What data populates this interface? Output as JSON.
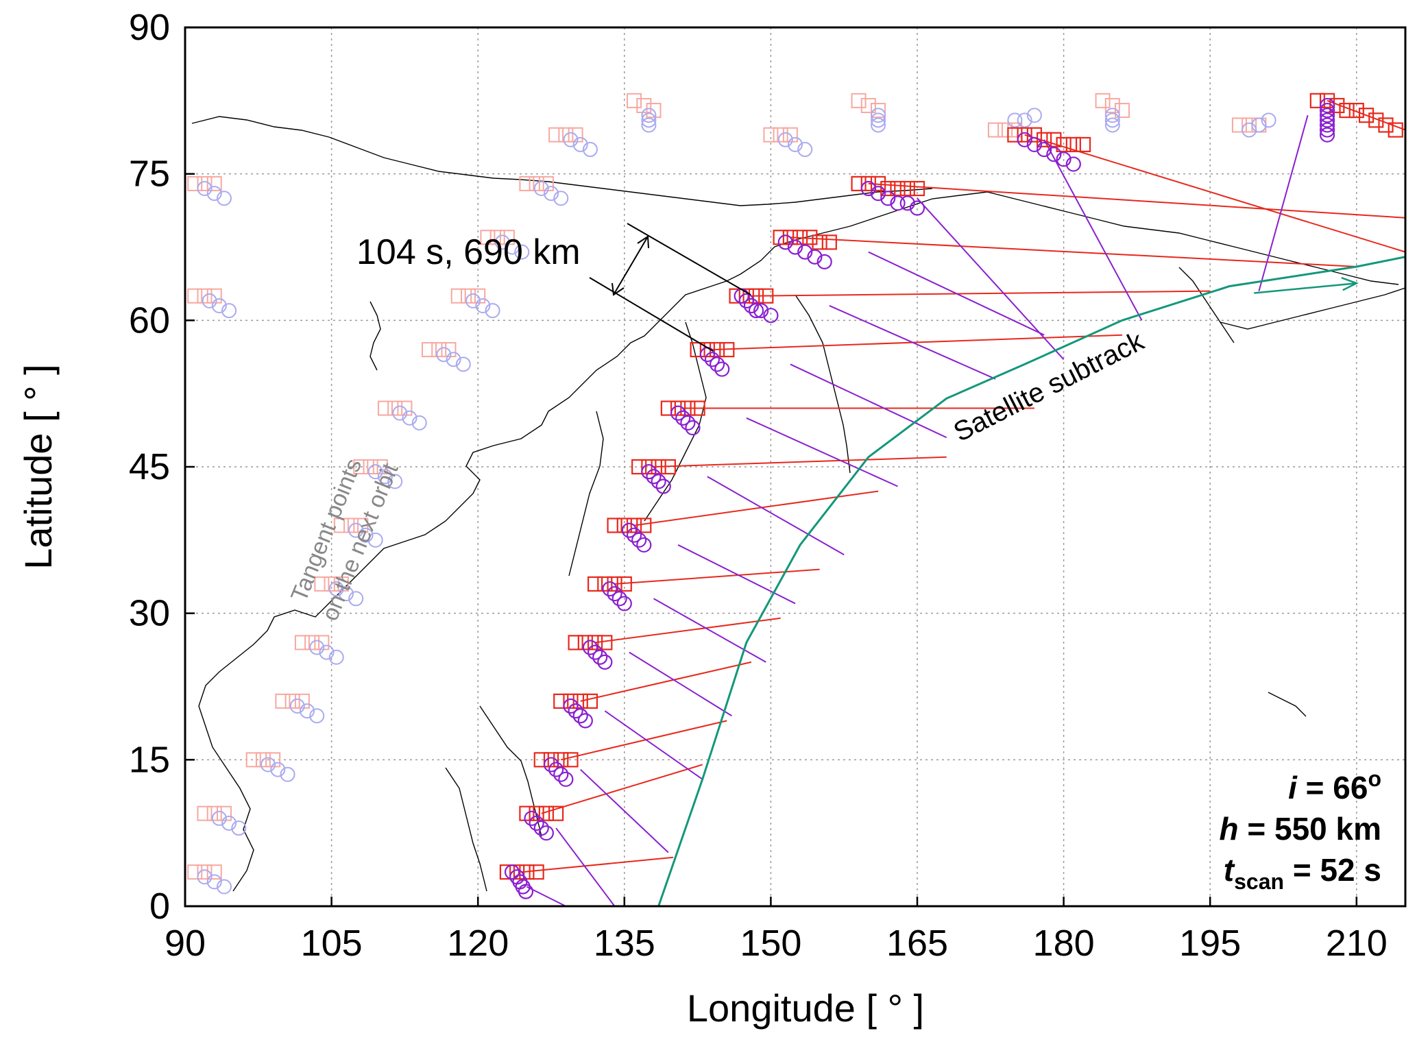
{
  "chart_data": {
    "type": "scatter",
    "title": "",
    "xlabel": "Longitude [ ° ]",
    "ylabel": "Latitude [ ° ]",
    "xlim": [
      90,
      215
    ],
    "ylim": [
      0,
      90
    ],
    "xticks": [
      "90",
      "105",
      "120",
      "135",
      "150",
      "165",
      "180",
      "195",
      "210"
    ],
    "yticks": [
      "0",
      "15",
      "30",
      "45",
      "60",
      "75",
      "90"
    ],
    "grid": true,
    "colors": {
      "red_squares": "#e8281c",
      "purple_circles": "#8a1fd0",
      "next_orbit_red": "#f7a8a0",
      "next_orbit_blue": "#a9aaf0",
      "subtrack": "#13977a",
      "coast": "#000000"
    },
    "subtrack": {
      "label": "Satellite subtrack",
      "points": [
        [
          138.5,
          0
        ],
        [
          143,
          13
        ],
        [
          147.5,
          27
        ],
        [
          153,
          37
        ],
        [
          160,
          46
        ],
        [
          168,
          52
        ],
        [
          176,
          55.5
        ],
        [
          186,
          60
        ],
        [
          197,
          63.5
        ],
        [
          210,
          65.5
        ],
        [
          215,
          66.5
        ]
      ]
    },
    "red_lines": [
      [
        [
          124.5,
          3.5
        ],
        [
          140,
          5
        ]
      ],
      [
        [
          126.5,
          9.5
        ],
        [
          143,
          14.5
        ]
      ],
      [
        [
          128.5,
          15
        ],
        [
          145.5,
          19
        ]
      ],
      [
        [
          130.5,
          21
        ],
        [
          148,
          25
        ]
      ],
      [
        [
          132,
          27
        ],
        [
          151,
          29.5
        ]
      ],
      [
        [
          134,
          33
        ],
        [
          155,
          34.5
        ]
      ],
      [
        [
          136,
          39
        ],
        [
          161,
          42.5
        ]
      ],
      [
        [
          138,
          45
        ],
        [
          168,
          46
        ]
      ],
      [
        [
          141,
          51
        ],
        [
          177,
          51
        ]
      ],
      [
        [
          144,
          57
        ],
        [
          186,
          58.5
        ]
      ],
      [
        [
          148,
          62.5
        ],
        [
          195,
          63
        ]
      ],
      [
        [
          152,
          68.5
        ],
        [
          210,
          65.5
        ]
      ],
      [
        [
          160,
          74
        ],
        [
          215,
          70.5
        ]
      ],
      [
        [
          176,
          79
        ],
        [
          215,
          67
        ]
      ],
      [
        [
          207,
          82.5
        ],
        [
          215,
          79.5
        ]
      ]
    ],
    "purple_lines": [
      [
        [
          125,
          2
        ],
        [
          129,
          0
        ]
      ],
      [
        [
          128,
          8
        ],
        [
          134,
          0
        ]
      ],
      [
        [
          130.5,
          14
        ],
        [
          139.5,
          5.5
        ]
      ],
      [
        [
          133,
          20
        ],
        [
          143,
          13
        ]
      ],
      [
        [
          135.5,
          26
        ],
        [
          146,
          19.5
        ]
      ],
      [
        [
          138,
          31.5
        ],
        [
          149.5,
          25
        ]
      ],
      [
        [
          140.5,
          37
        ],
        [
          152.5,
          31
        ]
      ],
      [
        [
          143.5,
          44
        ],
        [
          157.5,
          36
        ]
      ],
      [
        [
          147.5,
          50
        ],
        [
          163,
          43
        ]
      ],
      [
        [
          152,
          55.5
        ],
        [
          168,
          48
        ]
      ],
      [
        [
          156,
          61.5
        ],
        [
          173,
          54
        ]
      ],
      [
        [
          160,
          67
        ],
        [
          178,
          58.5
        ]
      ],
      [
        [
          165,
          72.5
        ],
        [
          180,
          56
        ]
      ],
      [
        [
          178,
          78.5
        ],
        [
          188,
          60
        ]
      ],
      [
        [
          205,
          81
        ],
        [
          200,
          63
        ]
      ]
    ],
    "red_squares": [
      [
        123,
        3.5
      ],
      [
        124,
        3.5
      ],
      [
        125,
        3.5
      ],
      [
        126,
        3.5
      ],
      [
        125,
        9.5
      ],
      [
        126,
        9.5
      ],
      [
        127,
        9.5
      ],
      [
        128,
        9.5
      ],
      [
        126.5,
        15
      ],
      [
        127.5,
        15
      ],
      [
        128.5,
        15
      ],
      [
        129.5,
        15
      ],
      [
        128.5,
        21
      ],
      [
        129.5,
        21
      ],
      [
        130.5,
        21
      ],
      [
        131.5,
        21
      ],
      [
        130,
        27
      ],
      [
        131,
        27
      ],
      [
        132,
        27
      ],
      [
        133,
        27
      ],
      [
        132,
        33
      ],
      [
        133,
        33
      ],
      [
        134,
        33
      ],
      [
        135,
        33
      ],
      [
        134,
        39
      ],
      [
        135,
        39
      ],
      [
        136,
        39
      ],
      [
        137,
        39
      ],
      [
        136.5,
        45
      ],
      [
        137.5,
        45
      ],
      [
        138.5,
        45
      ],
      [
        139.5,
        45
      ],
      [
        139.5,
        51
      ],
      [
        140.5,
        51
      ],
      [
        141.5,
        51
      ],
      [
        142.5,
        51
      ],
      [
        142.5,
        57
      ],
      [
        143.5,
        57
      ],
      [
        144.5,
        57
      ],
      [
        145.5,
        57
      ],
      [
        146.5,
        62.5
      ],
      [
        147.5,
        62.5
      ],
      [
        148.5,
        62.5
      ],
      [
        149.5,
        62.5
      ],
      [
        151,
        68.5
      ],
      [
        152,
        68.5
      ],
      [
        153,
        68.5
      ],
      [
        154,
        68.5
      ],
      [
        155,
        68
      ],
      [
        156,
        68
      ],
      [
        159,
        74
      ],
      [
        160,
        74
      ],
      [
        161,
        74
      ],
      [
        162,
        73.5
      ],
      [
        163,
        73.5
      ],
      [
        164,
        73.5
      ],
      [
        165,
        73.5
      ],
      [
        175,
        79
      ],
      [
        176,
        79
      ],
      [
        177,
        79
      ],
      [
        178,
        78.5
      ],
      [
        179,
        78.5
      ],
      [
        180,
        78
      ],
      [
        181,
        78
      ],
      [
        182,
        78
      ],
      [
        206,
        82.5
      ],
      [
        207,
        82.5
      ],
      [
        208,
        82
      ],
      [
        209,
        81.5
      ],
      [
        210,
        81.5
      ],
      [
        211,
        81
      ],
      [
        212,
        80.5
      ],
      [
        213,
        80
      ],
      [
        214,
        79.5
      ]
    ],
    "purple_circles": [
      [
        123.5,
        3.5
      ],
      [
        124,
        3
      ],
      [
        124.3,
        2.5
      ],
      [
        124.6,
        2
      ],
      [
        124.9,
        1.5
      ],
      [
        125.5,
        9
      ],
      [
        126,
        8.5
      ],
      [
        126.5,
        8
      ],
      [
        127,
        7.5
      ],
      [
        127.5,
        14.5
      ],
      [
        128,
        14
      ],
      [
        128.5,
        13.5
      ],
      [
        129,
        13
      ],
      [
        129.5,
        20.5
      ],
      [
        130,
        20
      ],
      [
        130.5,
        19.5
      ],
      [
        131,
        19
      ],
      [
        131.5,
        26.5
      ],
      [
        132,
        26
      ],
      [
        132.5,
        25.5
      ],
      [
        133,
        25
      ],
      [
        133.5,
        32.5
      ],
      [
        134,
        32
      ],
      [
        134.5,
        31.5
      ],
      [
        135,
        31
      ],
      [
        135.5,
        38.5
      ],
      [
        136,
        38
      ],
      [
        136.5,
        37.5
      ],
      [
        137,
        37
      ],
      [
        137.5,
        44.5
      ],
      [
        138,
        44
      ],
      [
        138.5,
        43.5
      ],
      [
        139,
        43
      ],
      [
        140.5,
        50.5
      ],
      [
        141,
        50
      ],
      [
        141.5,
        49.5
      ],
      [
        142,
        49
      ],
      [
        143.5,
        56.5
      ],
      [
        144,
        56
      ],
      [
        144.5,
        55.5
      ],
      [
        145,
        55
      ],
      [
        147,
        62.5
      ],
      [
        147.5,
        62
      ],
      [
        148,
        61.5
      ],
      [
        148.5,
        61
      ],
      [
        149,
        61
      ],
      [
        150,
        60.5
      ],
      [
        151.5,
        68
      ],
      [
        152.5,
        67.5
      ],
      [
        153.5,
        67
      ],
      [
        154.5,
        66.5
      ],
      [
        155.5,
        66
      ],
      [
        160,
        73.5
      ],
      [
        161,
        73
      ],
      [
        162,
        72.5
      ],
      [
        163,
        72
      ],
      [
        164,
        72
      ],
      [
        165,
        71.5
      ],
      [
        176,
        78.5
      ],
      [
        177,
        78
      ],
      [
        178,
        77.5
      ],
      [
        179,
        77
      ],
      [
        180,
        76.5
      ],
      [
        181,
        76
      ],
      [
        207,
        82
      ],
      [
        207,
        81.5
      ],
      [
        207,
        81
      ],
      [
        207,
        80.5
      ],
      [
        207,
        80
      ],
      [
        207,
        79.5
      ],
      [
        207,
        79
      ]
    ],
    "next_orbit_red": [
      [
        91,
        3.5
      ],
      [
        92,
        3.5
      ],
      [
        93,
        3.5
      ],
      [
        92,
        9.5
      ],
      [
        93,
        9.5
      ],
      [
        94,
        9.5
      ],
      [
        97,
        15
      ],
      [
        98,
        15
      ],
      [
        99,
        15
      ],
      [
        100,
        21
      ],
      [
        101,
        21
      ],
      [
        102,
        21
      ],
      [
        102,
        27
      ],
      [
        103,
        27
      ],
      [
        104,
        27
      ],
      [
        104,
        33
      ],
      [
        105,
        33
      ],
      [
        106,
        33
      ],
      [
        106,
        39
      ],
      [
        107,
        39
      ],
      [
        108,
        39
      ],
      [
        108,
        45
      ],
      [
        109,
        45
      ],
      [
        110,
        45
      ],
      [
        110.5,
        51
      ],
      [
        111.5,
        51
      ],
      [
        112.5,
        51
      ],
      [
        115,
        57
      ],
      [
        116,
        57
      ],
      [
        117,
        57
      ],
      [
        118,
        62.5
      ],
      [
        119,
        62.5
      ],
      [
        120,
        62.5
      ],
      [
        121,
        68.5
      ],
      [
        122,
        68.5
      ],
      [
        123,
        68.5
      ],
      [
        125,
        74
      ],
      [
        126,
        74
      ],
      [
        127,
        74
      ],
      [
        128,
        79
      ],
      [
        129,
        79
      ],
      [
        130,
        79
      ],
      [
        136,
        82.5
      ],
      [
        137,
        82
      ],
      [
        138,
        81.5
      ],
      [
        150,
        79
      ],
      [
        151,
        79
      ],
      [
        152,
        79
      ],
      [
        159,
        82.5
      ],
      [
        160,
        82
      ],
      [
        161,
        81.5
      ],
      [
        173,
        79.5
      ],
      [
        174,
        79.5
      ],
      [
        175,
        79.5
      ],
      [
        184,
        82.5
      ],
      [
        185,
        82
      ],
      [
        186,
        81.5
      ],
      [
        198,
        80
      ],
      [
        199,
        80
      ],
      [
        200,
        80
      ],
      [
        91,
        74
      ],
      [
        92,
        74
      ],
      [
        93,
        74
      ],
      [
        91,
        62.5
      ],
      [
        92,
        62.5
      ],
      [
        93,
        62.5
      ]
    ],
    "next_orbit_blue": [
      [
        92,
        3
      ],
      [
        93,
        2.5
      ],
      [
        94,
        2
      ],
      [
        93.5,
        9
      ],
      [
        94.5,
        8.5
      ],
      [
        95.5,
        8
      ],
      [
        98.5,
        14.5
      ],
      [
        99.5,
        14
      ],
      [
        100.5,
        13.5
      ],
      [
        101.5,
        20.5
      ],
      [
        102.5,
        20
      ],
      [
        103.5,
        19.5
      ],
      [
        103.5,
        26.5
      ],
      [
        104.5,
        26
      ],
      [
        105.5,
        25.5
      ],
      [
        105.5,
        32.5
      ],
      [
        106.5,
        32
      ],
      [
        107.5,
        31.5
      ],
      [
        107.5,
        38.5
      ],
      [
        108.5,
        38
      ],
      [
        109.5,
        37.5
      ],
      [
        109.5,
        44.5
      ],
      [
        110.5,
        44
      ],
      [
        111.5,
        43.5
      ],
      [
        112,
        50.5
      ],
      [
        113,
        50
      ],
      [
        114,
        49.5
      ],
      [
        116.5,
        56.5
      ],
      [
        117.5,
        56
      ],
      [
        118.5,
        55.5
      ],
      [
        119.5,
        62
      ],
      [
        120.5,
        61.5
      ],
      [
        121.5,
        61
      ],
      [
        122.5,
        68
      ],
      [
        123.5,
        67.5
      ],
      [
        124.5,
        67
      ],
      [
        126.5,
        73.5
      ],
      [
        127.5,
        73
      ],
      [
        128.5,
        72.5
      ],
      [
        129.5,
        78.5
      ],
      [
        130.5,
        78
      ],
      [
        131.5,
        77.5
      ],
      [
        137.5,
        81
      ],
      [
        137.5,
        80.5
      ],
      [
        137.5,
        80
      ],
      [
        151.5,
        78.5
      ],
      [
        152.5,
        78
      ],
      [
        153.5,
        77.5
      ],
      [
        161,
        81
      ],
      [
        161,
        80.5
      ],
      [
        161,
        80
      ],
      [
        175,
        80.5
      ],
      [
        176,
        80.5
      ],
      [
        177,
        81
      ],
      [
        185,
        81
      ],
      [
        185,
        80.5
      ],
      [
        185,
        80
      ],
      [
        199,
        79.5
      ],
      [
        200,
        80
      ],
      [
        201,
        80.5
      ],
      [
        92,
        73.5
      ],
      [
        93,
        73
      ],
      [
        94,
        72.5
      ],
      [
        92.5,
        62
      ],
      [
        93.5,
        61.5
      ],
      [
        94.5,
        61
      ]
    ],
    "annotations": {
      "gap": "104 s, 690 km",
      "next_orbit_line1": "Tangent points",
      "next_orbit_line2": "on the next orbit",
      "params": {
        "i_symbol": "i",
        "i_value": " = 66",
        "i_sup": "o",
        "h_symbol": "h",
        "h_value": " = 550 km",
        "t_symbol": "t",
        "t_sub": "scan",
        "t_value": " = 52 s"
      }
    }
  }
}
